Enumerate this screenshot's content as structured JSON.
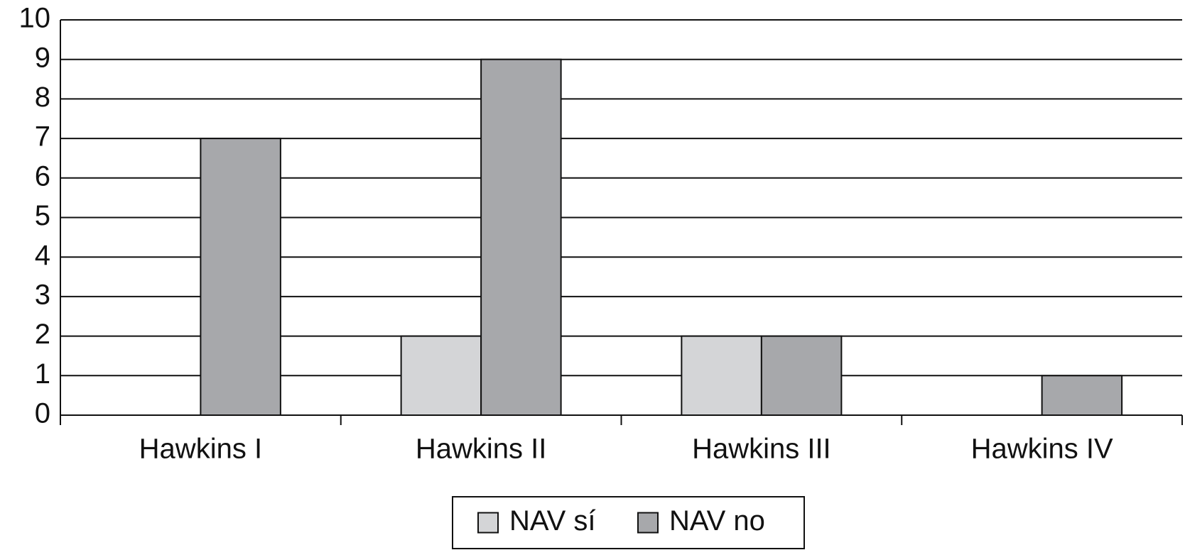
{
  "chart_data": {
    "type": "bar",
    "categories": [
      "Hawkins I",
      "Hawkins II",
      "Hawkins III",
      "Hawkins IV"
    ],
    "series": [
      {
        "name": "NAV sí",
        "color": "#d4d5d7",
        "values": [
          0,
          2,
          2,
          0
        ]
      },
      {
        "name": "NAV no",
        "color": "#a7a8ab",
        "values": [
          7,
          9,
          2,
          1
        ]
      }
    ],
    "ylim": [
      0,
      10
    ],
    "yticks": [
      0,
      1,
      2,
      3,
      4,
      5,
      6,
      7,
      8,
      9,
      10
    ],
    "grid": true,
    "legend": "bottom"
  }
}
